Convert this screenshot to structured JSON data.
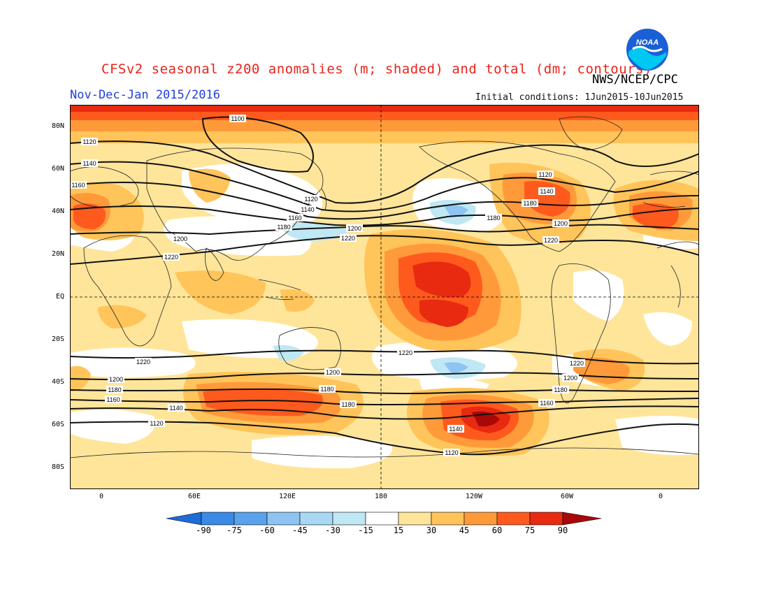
{
  "header": {
    "title": "CFSv2 seasonal z200 anomalies (m; shaded) and total (dm; contours)",
    "agency": "NWS/NCEP/CPC",
    "period": "Nov-Dec-Jan 2015/2016",
    "initial_conditions": "Initial conditions: 1Jun2015-10Jun2015"
  },
  "logo": {
    "text": "NOAA",
    "icon": "noaa-logo-icon",
    "colors": {
      "outer": "#1a5fd6",
      "inner": "#00c8f0"
    }
  },
  "axes": {
    "lat_labels": [
      "80N",
      "60N",
      "40N",
      "20N",
      "EQ",
      "20S",
      "40S",
      "60S",
      "80S"
    ],
    "lon_labels": [
      "0",
      "60E",
      "120E",
      "180",
      "120W",
      "60W",
      "0"
    ]
  },
  "contour_labels": [
    "1100",
    "1120",
    "1140",
    "1160",
    "1180",
    "1200",
    "1220"
  ],
  "colorbar": {
    "labels": [
      "-90",
      "-75",
      "-60",
      "-45",
      "-30",
      "-15",
      "15",
      "30",
      "45",
      "60",
      "75",
      "90"
    ],
    "colors": [
      "#1e6cd8",
      "#3a8ae6",
      "#5aa2ec",
      "#8ec4f2",
      "#bfe8f4",
      "#ffffff",
      "#ffe59a",
      "#ffc45a",
      "#ff9a3a",
      "#ff5a1e",
      "#e82a10",
      "#a80808"
    ]
  },
  "chart_data": {
    "type": "map",
    "title": "CFSv2 seasonal z200 anomalies (m; shaded) and total (dm; contours)",
    "subtitle": "Nov-Dec-Jan 2015/2016",
    "shading": "z200 anomalies (m)",
    "contours": "total z200 (dm)",
    "contour_levels": [
      1100,
      1120,
      1140,
      1160,
      1180,
      1200,
      1220
    ],
    "colorbar_levels": [
      -90,
      -75,
      -60,
      -45,
      -30,
      -15,
      15,
      30,
      45,
      60,
      75,
      90
    ],
    "lat_range": [
      -90,
      90
    ],
    "lon_range": [
      -20,
      380
    ]
  }
}
